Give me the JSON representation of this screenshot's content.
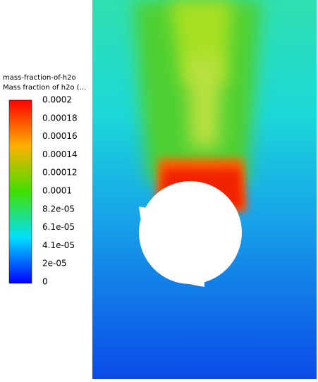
{
  "colorbar": {
    "title": "mass-fraction-of-h2o",
    "subtitle": "Mass fraction of h2o (...",
    "ticks": [
      "0.0002",
      "0.00018",
      "0.00016",
      "0.00014",
      "0.00012",
      "0.0001",
      "8.2e-05",
      "6.1e-05",
      "4.1e-05",
      "2e-05",
      "0"
    ]
  }
}
